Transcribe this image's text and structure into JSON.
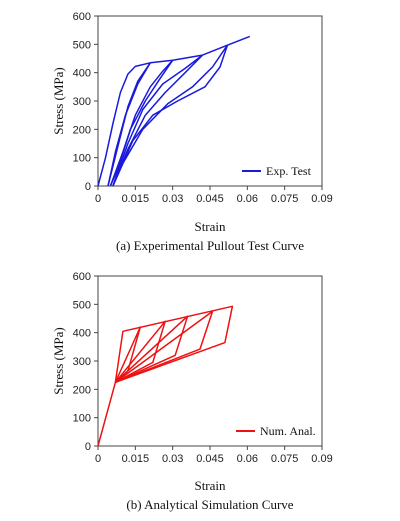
{
  "chart_data": [
    {
      "type": "line",
      "caption": "(a) Experimental Pullout Test Curve",
      "xlabel": "Strain",
      "ylabel": "Stress (MPa)",
      "xlim": [
        0,
        0.09
      ],
      "ylim": [
        0,
        600
      ],
      "x_ticks": [
        "0",
        "0.015",
        "0.03",
        "0.045",
        "0.06",
        "0.075",
        "0.09"
      ],
      "y_ticks": [
        "0",
        "100",
        "200",
        "300",
        "400",
        "500",
        "600"
      ],
      "legend": {
        "label": "Exp. Test",
        "position": "bottom-right"
      },
      "color": "#1a1adb",
      "series": [
        {
          "name": "Exp. Test",
          "curves": [
            [
              [
                0.0,
                0
              ],
              [
                0.003,
                100
              ],
              [
                0.006,
                220
              ],
              [
                0.009,
                330
              ],
              [
                0.012,
                395
              ],
              [
                0.015,
                422
              ],
              [
                0.021,
                435
              ],
              [
                0.03,
                444
              ],
              [
                0.042,
                462
              ],
              [
                0.052,
                497
              ],
              [
                0.061,
                528
              ]
            ],
            [
              [
                0.021,
                435
              ],
              [
                0.016,
                360
              ],
              [
                0.011,
                250
              ],
              [
                0.007,
                120
              ],
              [
                0.004,
                0
              ]
            ],
            [
              [
                0.004,
                0
              ],
              [
                0.008,
                140
              ],
              [
                0.012,
                280
              ],
              [
                0.016,
                370
              ],
              [
                0.021,
                435
              ]
            ],
            [
              [
                0.03,
                444
              ],
              [
                0.025,
                380
              ],
              [
                0.019,
                300
              ],
              [
                0.013,
                200
              ],
              [
                0.008,
                60
              ],
              [
                0.005,
                0
              ]
            ],
            [
              [
                0.005,
                0
              ],
              [
                0.01,
                120
              ],
              [
                0.015,
                250
              ],
              [
                0.021,
                350
              ],
              [
                0.026,
                405
              ],
              [
                0.03,
                444
              ]
            ],
            [
              [
                0.042,
                462
              ],
              [
                0.035,
                400
              ],
              [
                0.027,
                330
              ],
              [
                0.019,
                250
              ],
              [
                0.012,
                130
              ],
              [
                0.006,
                0
              ]
            ],
            [
              [
                0.006,
                0
              ],
              [
                0.012,
                150
              ],
              [
                0.018,
                270
              ],
              [
                0.026,
                360
              ],
              [
                0.035,
                415
              ],
              [
                0.042,
                462
              ]
            ],
            [
              [
                0.052,
                497
              ],
              [
                0.046,
                420
              ],
              [
                0.038,
                350
              ],
              [
                0.028,
                290
              ],
              [
                0.018,
                200
              ],
              [
                0.01,
                80
              ],
              [
                0.006,
                0
              ]
            ],
            [
              [
                0.006,
                0
              ],
              [
                0.014,
                160
              ],
              [
                0.022,
                250
              ],
              [
                0.032,
                300
              ],
              [
                0.043,
                350
              ],
              [
                0.049,
                420
              ],
              [
                0.052,
                497
              ]
            ]
          ]
        }
      ]
    },
    {
      "type": "line",
      "caption": "(b) Analytical Simulation Curve",
      "xlabel": "Strain",
      "ylabel": "Stress (MPa)",
      "xlim": [
        0,
        0.09
      ],
      "ylim": [
        0,
        600
      ],
      "x_ticks": [
        "0",
        "0.015",
        "0.03",
        "0.045",
        "0.06",
        "0.075",
        "0.09"
      ],
      "y_ticks": [
        "0",
        "100",
        "200",
        "300",
        "400",
        "500",
        "600"
      ],
      "legend": {
        "label": "Num. Anal.",
        "position": "bottom-right"
      },
      "color": "#ee1111",
      "series": [
        {
          "name": "Num. Anal.",
          "curves": [
            [
              [
                0.0,
                0
              ],
              [
                0.007,
                225
              ],
              [
                0.051,
                365
              ],
              [
                0.054,
                493
              ],
              [
                0.01,
                405
              ],
              [
                0.007,
                225
              ]
            ],
            [
              [
                0.007,
                225
              ],
              [
                0.017,
                420
              ],
              [
                0.012,
                265
              ],
              [
                0.007,
                225
              ]
            ],
            [
              [
                0.007,
                225
              ],
              [
                0.027,
                440
              ],
              [
                0.022,
                295
              ],
              [
                0.007,
                225
              ]
            ],
            [
              [
                0.007,
                225
              ],
              [
                0.036,
                458
              ],
              [
                0.031,
                320
              ],
              [
                0.007,
                225
              ]
            ],
            [
              [
                0.007,
                225
              ],
              [
                0.046,
                475
              ],
              [
                0.041,
                342
              ],
              [
                0.007,
                225
              ]
            ]
          ]
        }
      ]
    }
  ]
}
